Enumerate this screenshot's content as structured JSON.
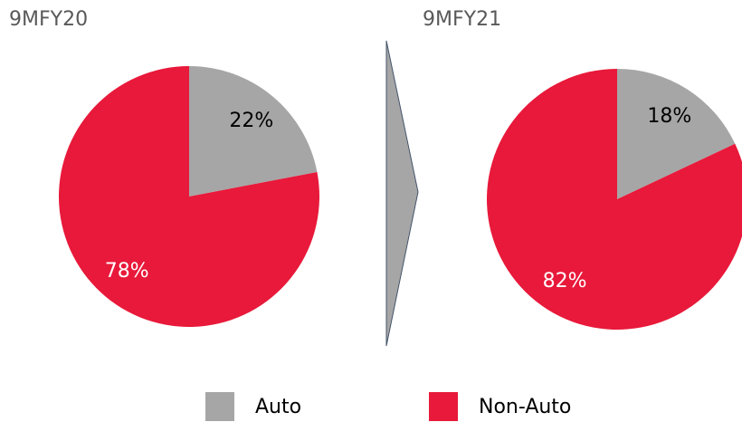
{
  "chart_data": [
    {
      "type": "pie",
      "title": "9MFY20",
      "categories": [
        "Auto",
        "Non-Auto"
      ],
      "values": [
        22,
        78
      ],
      "value_labels": [
        "22%",
        "78%"
      ],
      "colors": [
        "#a6a6a6",
        "#e8193a"
      ]
    },
    {
      "type": "pie",
      "title": "9MFY21",
      "categories": [
        "Auto",
        "Non-Auto"
      ],
      "values": [
        18,
        82
      ],
      "value_labels": [
        "18%",
        "82%"
      ],
      "colors": [
        "#a6a6a6",
        "#e8193a"
      ]
    }
  ]
}
